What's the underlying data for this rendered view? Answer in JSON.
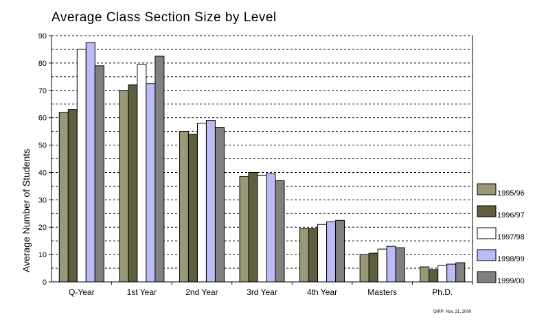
{
  "chart_data": {
    "type": "bar",
    "title": "Average Class Section Size by Level",
    "ylabel": "Average Number of Students",
    "xlabel": "",
    "ylim": [
      0,
      90
    ],
    "yticks": [
      0,
      10,
      20,
      30,
      40,
      50,
      60,
      70,
      80,
      90
    ],
    "grid": "dashed-horizontal",
    "legend": "right",
    "categories": [
      "Q-Year",
      "1st Year",
      "2nd Year",
      "3rd Year",
      "4th Year",
      "Masters",
      "Ph.D."
    ],
    "series": [
      {
        "name": "1995/96",
        "color": "#999977",
        "values": [
          62,
          70,
          55,
          38.5,
          19.5,
          10,
          5.5
        ]
      },
      {
        "name": "1996/97",
        "color": "#5f5f3f",
        "values": [
          63,
          72,
          54,
          40,
          19.5,
          10.5,
          4.5
        ]
      },
      {
        "name": "1997/98",
        "color": "#ffffff",
        "values": [
          85,
          79.5,
          58,
          39,
          21,
          12,
          6
        ]
      },
      {
        "name": "1998/99",
        "color": "#bbbbf5",
        "values": [
          87.5,
          72.5,
          59,
          39.5,
          22,
          13,
          6.5
        ]
      },
      {
        "name": "1999/00",
        "color": "#808080",
        "values": [
          79,
          82.5,
          56.5,
          37,
          22.5,
          12.5,
          7
        ]
      }
    ],
    "footnote": "OIRP: Nov. 21, 2000"
  }
}
